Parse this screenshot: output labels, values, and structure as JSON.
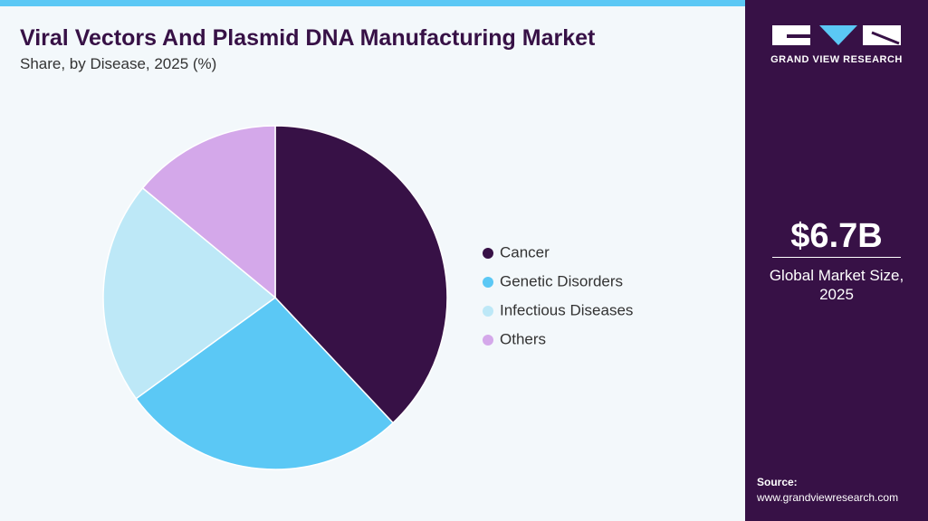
{
  "chart_data": {
    "type": "pie",
    "title": "Viral Vectors And Plasmid DNA Manufacturing Market",
    "subtitle": "Share, by Disease, 2025 (%)",
    "categories": [
      "Cancer",
      "Genetic Disorders",
      "Infectious Diseases",
      "Others"
    ],
    "values": [
      38,
      27,
      21,
      14
    ],
    "colors": [
      "#371146",
      "#5bc8f5",
      "#bde8f7",
      "#d4a8ea"
    ]
  },
  "sidebar": {
    "brand": "GRAND VIEW RESEARCH",
    "market_size": "$6.7B",
    "market_size_label": "Global Market Size, 2025",
    "source_label": "Source:",
    "source_url": "www.grandviewresearch.com"
  }
}
